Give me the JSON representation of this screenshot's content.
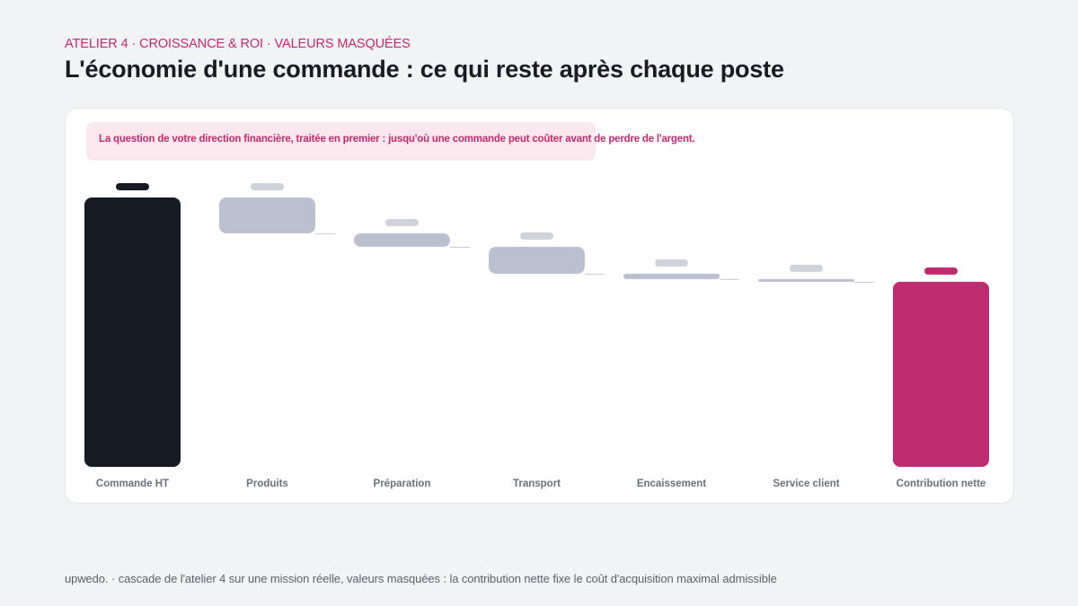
{
  "header": {
    "eyebrow": "ATELIER 4 · CROISSANCE & ROI · VALEURS MASQUÉES",
    "title": "L'économie d'une commande : ce qui reste après chaque poste"
  },
  "callout": {
    "text": "La question de votre direction financière, traitée en premier : jusqu'où une commande peut coûter avant de perdre de l'argent."
  },
  "footer": {
    "text": "upwedo. · cascade de l'atelier 4 sur une mission réelle, valeurs masquées : la contribution nette fixe le coût d'acquisition maximal admissible"
  },
  "colors": {
    "total": "#161a23",
    "step": "#bac0d0",
    "result": "#c02a6e",
    "connector": "#c6cad5",
    "masked_step_label": "#cfd2db"
  },
  "chart_data": {
    "type": "waterfall",
    "values_masked": true,
    "ylim": [
      0,
      100
    ],
    "steps": [
      {
        "label": "Commande HT",
        "kind": "total",
        "value": 100
      },
      {
        "label": "Produits",
        "kind": "decrease",
        "value": -13.3
      },
      {
        "label": "Préparation",
        "kind": "decrease",
        "value": -5
      },
      {
        "label": "Transport",
        "kind": "decrease",
        "value": -10
      },
      {
        "label": "Encaissement",
        "kind": "decrease",
        "value": -2
      },
      {
        "label": "Service client",
        "kind": "decrease",
        "value": -1
      },
      {
        "label": "Contribution nette",
        "kind": "result",
        "value": 68.7
      }
    ]
  }
}
